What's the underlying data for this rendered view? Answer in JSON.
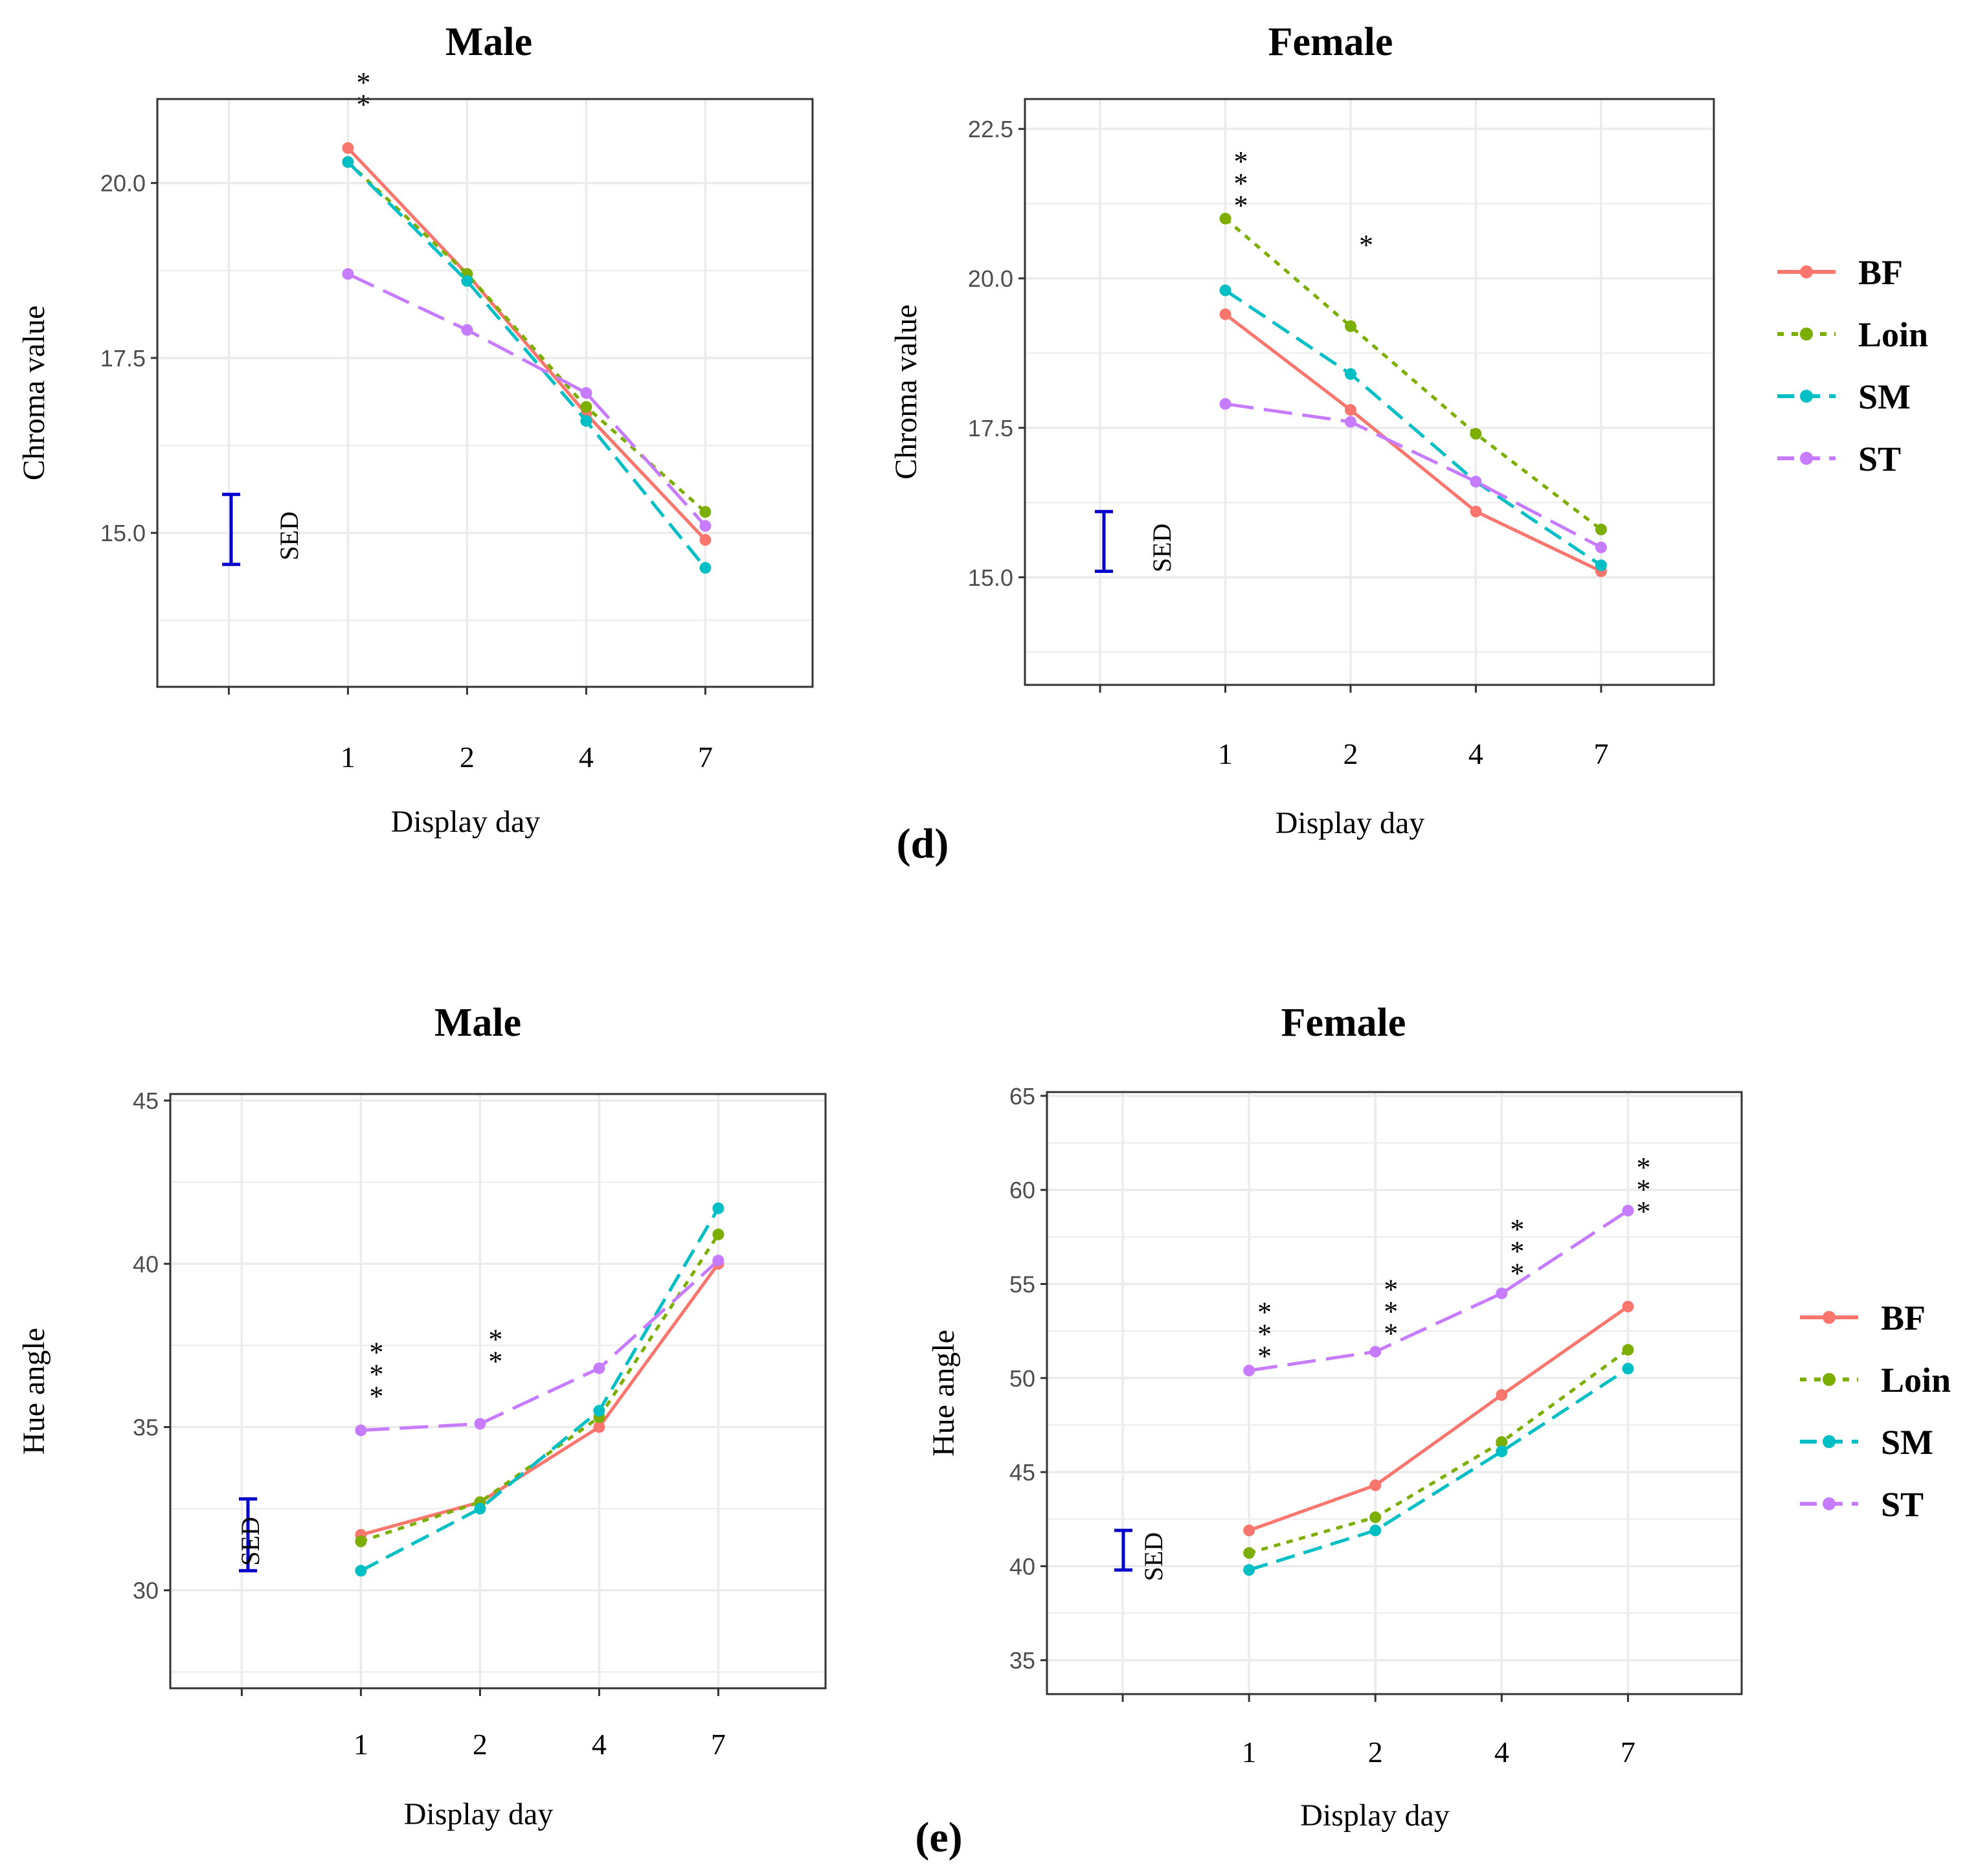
{
  "colors": {
    "BF": "#F8766D",
    "Loin": "#7CAE00",
    "SM": "#00BFC4",
    "ST": "#C77CFF",
    "sed": "#0000CC",
    "grid": "#ebebeb",
    "panel_border": "#333333"
  },
  "figure_labels": [
    "(d)",
    "(e)"
  ],
  "legend": [
    {
      "key": "BF",
      "label": "BF",
      "dash": "solid"
    },
    {
      "key": "Loin",
      "label": "Loin",
      "dash": "dotted"
    },
    {
      "key": "SM",
      "label": "SM",
      "dash": "dashed"
    },
    {
      "key": "ST",
      "label": "ST",
      "dash": "longdash"
    }
  ],
  "chart_data": [
    {
      "type": "line",
      "title": "Male",
      "xlabel": "Display day",
      "ylabel": "Chroma value",
      "categories": [
        "1",
        "2",
        "4",
        "7"
      ],
      "ylim": [
        12.8,
        21.2
      ],
      "yticks": [
        15.0,
        17.5,
        20.0
      ],
      "ytick_labels": [
        "15.0",
        "17.5",
        "20.0"
      ],
      "grid": true,
      "series": [
        {
          "key": "BF",
          "name": "BF",
          "values": [
            20.5,
            18.7,
            16.7,
            14.9
          ]
        },
        {
          "key": "Loin",
          "name": "Loin",
          "values": [
            20.3,
            18.7,
            16.8,
            15.3
          ]
        },
        {
          "key": "SM",
          "name": "SM",
          "values": [
            20.3,
            18.6,
            16.6,
            14.5
          ]
        },
        {
          "key": "ST",
          "name": "ST",
          "values": [
            18.7,
            17.9,
            17.0,
            15.1
          ]
        }
      ],
      "sed": {
        "label": "SED",
        "center": 15.05,
        "half_range": 0.5
      },
      "significance": [
        {
          "category": "1",
          "value": 21.3,
          "marks": "* *"
        }
      ]
    },
    {
      "type": "line",
      "title": "Female",
      "xlabel": "Display day",
      "ylabel": "Chroma value",
      "categories": [
        "1",
        "2",
        "4",
        "7"
      ],
      "ylim": [
        13.2,
        23.0
      ],
      "yticks": [
        15.0,
        17.5,
        20.0,
        22.5
      ],
      "ytick_labels": [
        "15.0",
        "17.5",
        "20.0",
        "22.5"
      ],
      "grid": true,
      "series": [
        {
          "key": "BF",
          "name": "BF",
          "values": [
            19.4,
            17.8,
            16.1,
            15.1
          ]
        },
        {
          "key": "Loin",
          "name": "Loin",
          "values": [
            21.0,
            19.2,
            17.4,
            15.8
          ]
        },
        {
          "key": "SM",
          "name": "SM",
          "values": [
            19.8,
            18.4,
            16.6,
            15.2
          ]
        },
        {
          "key": "ST",
          "name": "ST",
          "values": [
            17.9,
            17.6,
            16.6,
            15.5
          ]
        }
      ],
      "sed": {
        "label": "SED",
        "center": 15.6,
        "half_range": 0.5
      },
      "significance": [
        {
          "category": "1",
          "value": 21.8,
          "marks": "* * *"
        },
        {
          "category": "2",
          "value": 20.4,
          "marks": "*"
        }
      ]
    },
    {
      "type": "line",
      "title": "Male",
      "xlabel": "Display day",
      "ylabel": "Hue angle",
      "categories": [
        "1",
        "2",
        "4",
        "7"
      ],
      "ylim": [
        27.0,
        45.2
      ],
      "yticks": [
        30,
        35,
        40,
        45
      ],
      "ytick_labels": [
        "30",
        "35",
        "40",
        "45"
      ],
      "grid": true,
      "series": [
        {
          "key": "BF",
          "name": "BF",
          "values": [
            31.7,
            32.7,
            35.0,
            40.0
          ]
        },
        {
          "key": "Loin",
          "name": "Loin",
          "values": [
            31.5,
            32.7,
            35.3,
            40.9
          ]
        },
        {
          "key": "SM",
          "name": "SM",
          "values": [
            30.6,
            32.5,
            35.5,
            41.7
          ]
        },
        {
          "key": "ST",
          "name": "ST",
          "values": [
            34.9,
            35.1,
            36.8,
            40.1
          ]
        }
      ],
      "sed": {
        "label": "SED",
        "center": 31.7,
        "half_range": 1.1
      },
      "significance": [
        {
          "category": "1",
          "value": 37.0,
          "marks": "* * *"
        },
        {
          "category": "2",
          "value": 37.4,
          "marks": "* *"
        }
      ]
    },
    {
      "type": "line",
      "title": "Female",
      "xlabel": "Display day",
      "ylabel": "Hue angle",
      "categories": [
        "1",
        "2",
        "4",
        "7"
      ],
      "ylim": [
        33.2,
        65.2
      ],
      "yticks": [
        35,
        40,
        45,
        50,
        55,
        60,
        65
      ],
      "ytick_labels": [
        "35",
        "40",
        "45",
        "50",
        "55",
        "60",
        "65"
      ],
      "grid": true,
      "series": [
        {
          "key": "BF",
          "name": "BF",
          "values": [
            41.9,
            44.3,
            49.1,
            53.8
          ]
        },
        {
          "key": "Loin",
          "name": "Loin",
          "values": [
            40.7,
            42.6,
            46.6,
            51.5
          ]
        },
        {
          "key": "SM",
          "name": "SM",
          "values": [
            39.8,
            41.9,
            46.1,
            50.5
          ]
        },
        {
          "key": "ST",
          "name": "ST",
          "values": [
            50.4,
            51.4,
            54.5,
            58.9
          ]
        }
      ],
      "sed": {
        "label": "SED",
        "center": 40.85,
        "half_range": 1.05
      },
      "significance": [
        {
          "category": "1",
          "value": 53.0,
          "marks": "* * *"
        },
        {
          "category": "2",
          "value": 54.2,
          "marks": "* * *"
        },
        {
          "category": "4",
          "value": 57.4,
          "marks": "* * *"
        },
        {
          "category": "7",
          "value": 60.7,
          "marks": "* * *"
        }
      ]
    }
  ]
}
